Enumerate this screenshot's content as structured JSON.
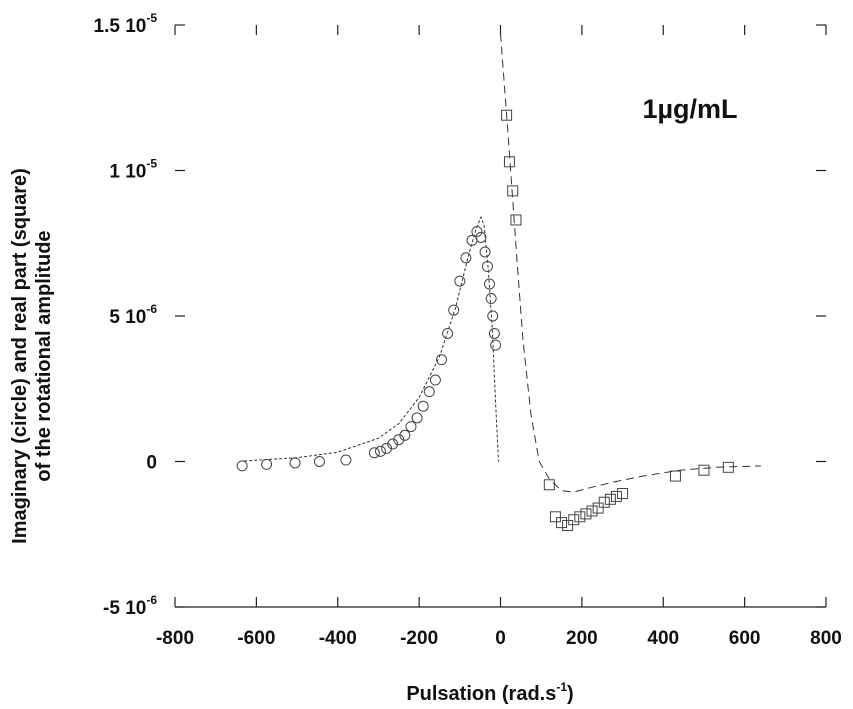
{
  "chart_data": {
    "type": "scatter",
    "title": "",
    "annotation": "1µg/mL",
    "xlabel": "Pulsation (rad.s",
    "xlabel_exp": "-1",
    "xlabel_close": ")",
    "ylabel_line1": "Imaginary (circle) and real part (square)",
    "ylabel_line2": "of the rotational amplitude",
    "xlim": [
      -800,
      800
    ],
    "ylim": [
      -5e-06,
      1.5e-05
    ],
    "x_ticks": [
      -800,
      -600,
      -400,
      -200,
      0,
      200,
      400,
      600,
      800
    ],
    "x_tick_labels": [
      "-800",
      "-600",
      "-400",
      "-200",
      "0",
      "200",
      "400",
      "600",
      "800"
    ],
    "y_ticks": [
      {
        "value": -5e-06,
        "mantissa": "-5 10",
        "exp": "-6"
      },
      {
        "value": 0,
        "mantissa": "0",
        "exp": ""
      },
      {
        "value": 5e-06,
        "mantissa": "5 10",
        "exp": "-6"
      },
      {
        "value": 1e-05,
        "mantissa": "1 10",
        "exp": "-5"
      },
      {
        "value": 1.5e-05,
        "mantissa": "1.5 10",
        "exp": "-5"
      }
    ],
    "series": [
      {
        "marker": "circle",
        "points": [
          [
            -635,
            -1.5e-07
          ],
          [
            -575,
            -1e-07
          ],
          [
            -505,
            -5e-08
          ],
          [
            -445,
            0
          ],
          [
            -380,
            5e-08
          ],
          [
            -310,
            3e-07
          ],
          [
            -295,
            3.5e-07
          ],
          [
            -280,
            4.5e-07
          ],
          [
            -265,
            6e-07
          ],
          [
            -250,
            7.5e-07
          ],
          [
            -235,
            9e-07
          ],
          [
            -220,
            1.2e-06
          ],
          [
            -205,
            1.5e-06
          ],
          [
            -190,
            1.9e-06
          ],
          [
            -175,
            2.4e-06
          ],
          [
            -160,
            2.8e-06
          ],
          [
            -145,
            3.5e-06
          ],
          [
            -130,
            4.4e-06
          ],
          [
            -115,
            5.2e-06
          ],
          [
            -100,
            6.2e-06
          ],
          [
            -85,
            7e-06
          ],
          [
            -70,
            7.6e-06
          ],
          [
            -58,
            7.9e-06
          ],
          [
            -48,
            7.7e-06
          ],
          [
            -38,
            7.2e-06
          ],
          [
            -32,
            6.7e-06
          ],
          [
            -27,
            6.1e-06
          ],
          [
            -23,
            5.6e-06
          ],
          [
            -19,
            5e-06
          ],
          [
            -15,
            4.4e-06
          ],
          [
            -12,
            4e-06
          ]
        ]
      },
      {
        "marker": "square",
        "points": [
          [
            15,
            1.19e-05
          ],
          [
            22,
            1.03e-05
          ],
          [
            30,
            9.3e-06
          ],
          [
            38,
            8.3e-06
          ],
          [
            120,
            -8e-07
          ],
          [
            135,
            -1.9e-06
          ],
          [
            150,
            -2.1e-06
          ],
          [
            165,
            -2.2e-06
          ],
          [
            180,
            -2e-06
          ],
          [
            195,
            -1.9e-06
          ],
          [
            210,
            -1.8e-06
          ],
          [
            225,
            -1.7e-06
          ],
          [
            240,
            -1.6e-06
          ],
          [
            255,
            -1.4e-06
          ],
          [
            270,
            -1.3e-06
          ],
          [
            285,
            -1.2e-06
          ],
          [
            300,
            -1.1e-06
          ],
          [
            430,
            -5e-07
          ],
          [
            500,
            -3e-07
          ],
          [
            560,
            -2e-07
          ]
        ]
      },
      {
        "marker": "none",
        "line_style": "dotted",
        "points": [
          [
            -630,
            2e-08
          ],
          [
            -500,
            1.3e-07
          ],
          [
            -400,
            3.2e-07
          ],
          [
            -300,
            8e-07
          ],
          [
            -250,
            1.3e-06
          ],
          [
            -200,
            2.2e-06
          ],
          [
            -150,
            3.6e-06
          ],
          [
            -110,
            5.3e-06
          ],
          [
            -80,
            7e-06
          ],
          [
            -60,
            8e-06
          ],
          [
            -48,
            8.4e-06
          ],
          [
            -40,
            8.1e-06
          ],
          [
            -30,
            6.6e-06
          ],
          [
            -20,
            4.5e-06
          ],
          [
            -12,
            2e-06
          ],
          [
            -5,
            0
          ]
        ]
      },
      {
        "marker": "none",
        "line_style": "dashed",
        "points": [
          [
            0,
            1.47e-05
          ],
          [
            20,
            1.1e-05
          ],
          [
            40,
            7e-06
          ],
          [
            55,
            4.2e-06
          ],
          [
            75,
            1.6e-06
          ],
          [
            95,
            0
          ],
          [
            120,
            -6e-07
          ],
          [
            150,
            -1e-06
          ],
          [
            180,
            -1.05e-06
          ],
          [
            220,
            -9e-07
          ],
          [
            280,
            -7e-07
          ],
          [
            350,
            -5e-07
          ],
          [
            440,
            -3e-07
          ],
          [
            530,
            -2e-07
          ],
          [
            640,
            -1.5e-07
          ]
        ]
      }
    ],
    "grid": false,
    "legend": "none"
  }
}
